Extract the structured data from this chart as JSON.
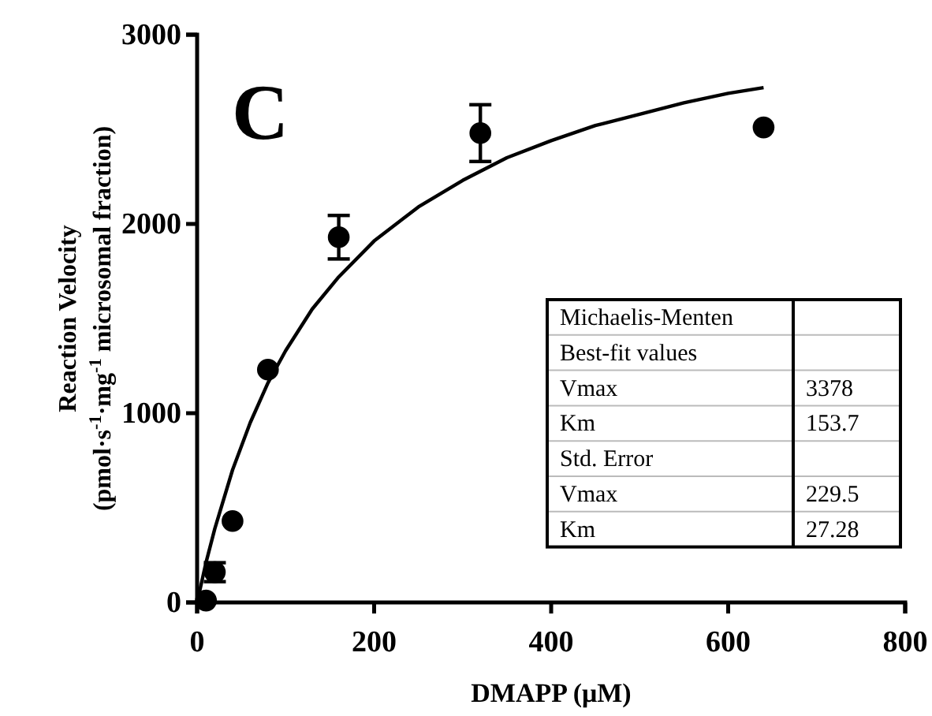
{
  "chart_data": {
    "type": "scatter",
    "xlabel": "DMAPP (μM)",
    "ylabel": "Reaction Velocity\n(pmol·s$^{-1}$·mg$^{-1}$ microsomal fraction)",
    "xlim": [
      0,
      800
    ],
    "xticks": [
      0,
      200,
      400,
      600,
      800
    ],
    "ylim": [
      0,
      3000
    ],
    "yticks": [
      0,
      1000,
      2000,
      3000
    ],
    "grid": false,
    "marker": "circle",
    "annotations": [
      "C",
      "Michaelis-Menten",
      "Best-fit values",
      "Vmax",
      "3378",
      "Km",
      "153.7",
      "Std. Error",
      "Vmax",
      "229.5",
      "Km",
      "27.28"
    ],
    "series": [
      {
        "color": "#000000",
        "x": [
          10,
          20,
          40,
          80,
          160,
          320,
          640
        ],
        "values": [
          10,
          160,
          430,
          1230,
          1930,
          2480,
          2510
        ],
        "errors": [
          null,
          50,
          null,
          null,
          115,
          150,
          null
        ]
      },
      {
        "type": "line",
        "color": "#000000",
        "marker": "none",
        "line_style": "solid",
        "x": [
          0,
          10,
          20,
          40,
          60,
          80,
          100,
          130,
          160,
          200,
          250,
          300,
          350,
          400,
          450,
          500,
          550,
          600,
          640
        ],
        "values": [
          0,
          210,
          390,
          700,
          950,
          1160,
          1330,
          1550,
          1720,
          1910,
          2090,
          2230,
          2350,
          2440,
          2520,
          2580,
          2640,
          2690,
          2720
        ]
      }
    ]
  }
}
